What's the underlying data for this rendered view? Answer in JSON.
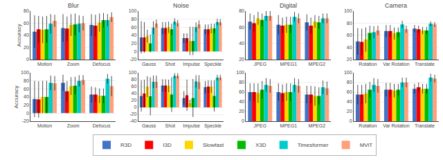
{
  "chart_data": [
    {
      "type": "bar",
      "title": "Blur",
      "ylabel": "Accuracy",
      "categories": [
        "Motion",
        "Zoom",
        "Defocus"
      ],
      "series": [
        {
          "name": "R3D",
          "color": "#4472C4",
          "values": [
            46,
            52,
            57
          ],
          "errors": [
            27,
            23,
            18
          ]
        },
        {
          "name": "I3D",
          "color": "#FF0000",
          "values": [
            50,
            51,
            56
          ],
          "errors": [
            22,
            20,
            18
          ]
        },
        {
          "name": "Slowfast",
          "color": "#FFD700",
          "values": [
            49,
            57,
            61
          ],
          "errors": [
            22,
            18,
            15
          ]
        },
        {
          "name": "X3D",
          "color": "#00BB00",
          "values": [
            50,
            58,
            65
          ],
          "errors": [
            22,
            18,
            12
          ]
        },
        {
          "name": "Timesformer",
          "color": "#00CCCC",
          "values": [
            59,
            59,
            65
          ],
          "errors": [
            16,
            14,
            10
          ]
        },
        {
          "name": "MViT",
          "color": "#FFA07A",
          "values": [
            64,
            60,
            70
          ],
          "errors": [
            10,
            12,
            8
          ]
        }
      ],
      "ylim": [
        0,
        80
      ],
      "yticks": [
        0,
        20,
        40,
        60,
        80
      ],
      "grid": true,
      "legend": "bottom"
    },
    {
      "type": "bar",
      "title": "Noise",
      "categories": [
        "Gauss",
        "Shot",
        "Impulse",
        "Speckle"
      ],
      "series": [
        {
          "name": "R3D",
          "color": "#4472C4",
          "values": [
            35,
            58,
            33,
            55
          ],
          "errors": [
            40,
            15,
            12,
            12
          ]
        },
        {
          "name": "I3D",
          "color": "#FF0000",
          "values": [
            35,
            58,
            33,
            55
          ],
          "errors": [
            38,
            15,
            12,
            12
          ]
        },
        {
          "name": "Slowfast",
          "color": "#FFD700",
          "values": [
            38,
            60,
            26,
            57
          ],
          "errors": [
            16,
            14,
            35,
            12
          ]
        },
        {
          "name": "X3D",
          "color": "#00BB00",
          "values": [
            20,
            55,
            26,
            57
          ],
          "errors": [
            22,
            14,
            35,
            12
          ]
        },
        {
          "name": "Timesformer",
          "color": "#00CCCC",
          "values": [
            59,
            74,
            60,
            73
          ],
          "errors": [
            16,
            8,
            12,
            8
          ]
        },
        {
          "name": "MViT",
          "color": "#FFA07A",
          "values": [
            69,
            70,
            67,
            72
          ],
          "errors": [
            10,
            8,
            10,
            8
          ]
        }
      ],
      "ylim": [
        -20,
        100
      ],
      "yticks": [
        -20,
        0,
        20,
        40,
        60,
        80,
        100
      ],
      "grid": true
    },
    {
      "type": "bar",
      "title": "Digital",
      "categories": [
        "JPEG",
        "MPEG1",
        "MPEG2"
      ],
      "series": [
        {
          "name": "R3D",
          "color": "#4472C4",
          "values": [
            67,
            63,
            66
          ],
          "errors": [
            10,
            12,
            10
          ]
        },
        {
          "name": "I3D",
          "color": "#FF0000",
          "values": [
            65,
            62,
            62
          ],
          "errors": [
            10,
            10,
            10
          ]
        },
        {
          "name": "Slowfast",
          "color": "#FFD700",
          "values": [
            71,
            63,
            67
          ],
          "errors": [
            8,
            10,
            8
          ]
        },
        {
          "name": "X3D",
          "color": "#00BB00",
          "values": [
            69,
            63,
            66
          ],
          "errors": [
            8,
            10,
            8
          ]
        },
        {
          "name": "Timesformer",
          "color": "#00CCCC",
          "values": [
            74,
            73,
            71
          ],
          "errors": [
            6,
            6,
            6
          ]
        },
        {
          "name": "MViT",
          "color": "#FFA07A",
          "values": [
            74,
            71,
            71
          ],
          "errors": [
            6,
            6,
            6
          ]
        }
      ],
      "ylim": [
        20,
        80
      ],
      "yticks": [
        20,
        40,
        60,
        80
      ],
      "grid": true
    },
    {
      "type": "bar",
      "title": "Camera",
      "categories": [
        "Rotation",
        "Var Rotation",
        "Translate"
      ],
      "series": [
        {
          "name": "R3D",
          "color": "#4472C4",
          "values": [
            50,
            67,
            71
          ],
          "errors": [
            22,
            10,
            6
          ]
        },
        {
          "name": "I3D",
          "color": "#FF0000",
          "values": [
            49,
            67,
            70
          ],
          "errors": [
            22,
            10,
            6
          ]
        },
        {
          "name": "Slowfast",
          "color": "#FFD700",
          "values": [
            53,
            63,
            68
          ],
          "errors": [
            20,
            10,
            6
          ]
        },
        {
          "name": "X3D",
          "color": "#00BB00",
          "values": [
            64,
            65,
            68
          ],
          "errors": [
            12,
            8,
            6
          ]
        },
        {
          "name": "Timesformer",
          "color": "#00CCCC",
          "values": [
            65,
            78,
            79
          ],
          "errors": [
            10,
            6,
            4
          ]
        },
        {
          "name": "MViT",
          "color": "#FFA07A",
          "values": [
            68,
            70,
            78
          ],
          "errors": [
            8,
            6,
            4
          ]
        }
      ],
      "ylim": [
        20,
        100
      ],
      "yticks": [
        20,
        40,
        60,
        80,
        100
      ],
      "grid": true
    },
    {
      "type": "bar",
      "ylabel": "Accuracy",
      "categories": [
        "Motion",
        "Zoom",
        "Defocus"
      ],
      "series": [
        {
          "name": "R3D",
          "color": "#4472C4",
          "values": [
            35,
            75,
            46
          ],
          "errors": [
            45,
            20,
            20
          ]
        },
        {
          "name": "I3D",
          "color": "#FF0000",
          "values": [
            34,
            54,
            46
          ],
          "errors": [
            45,
            25,
            18
          ]
        },
        {
          "name": "Slowfast",
          "color": "#FFD700",
          "values": [
            40,
            67,
            43
          ],
          "errors": [
            40,
            22,
            18
          ]
        },
        {
          "name": "X3D",
          "color": "#00BB00",
          "values": [
            40,
            68,
            43
          ],
          "errors": [
            40,
            22,
            18
          ]
        },
        {
          "name": "Timesformer",
          "color": "#00CCCC",
          "values": [
            75,
            80,
            85
          ],
          "errors": [
            18,
            14,
            12
          ]
        },
        {
          "name": "MViT",
          "color": "#FFA07A",
          "values": [
            74,
            82,
            67
          ],
          "errors": [
            18,
            12,
            25
          ]
        }
      ],
      "ylim": [
        -20,
        100
      ],
      "yticks": [
        -20,
        0,
        20,
        40,
        60,
        80,
        100
      ],
      "grid": true
    },
    {
      "type": "bar",
      "categories": [
        "Gauss",
        "Shot",
        "Impulse",
        "Speckle"
      ],
      "series": [
        {
          "name": "R3D",
          "color": "#4472C4",
          "values": [
            33,
            63,
            27,
            58
          ],
          "errors": [
            45,
            18,
            20,
            18
          ]
        },
        {
          "name": "I3D",
          "color": "#FF0000",
          "values": [
            40,
            63,
            35,
            60
          ],
          "errors": [
            40,
            18,
            45,
            18
          ]
        },
        {
          "name": "Slowfast",
          "color": "#FFD700",
          "values": [
            60,
            62,
            12,
            60
          ],
          "errors": [
            30,
            18,
            10,
            18
          ]
        },
        {
          "name": "X3D",
          "color": "#00BB00",
          "values": [
            32,
            37,
            27,
            33
          ],
          "errors": [
            55,
            50,
            55,
            45
          ]
        },
        {
          "name": "Timesformer",
          "color": "#00CCCC",
          "values": [
            74,
            91,
            75,
            86
          ],
          "errors": [
            18,
            8,
            18,
            8
          ]
        },
        {
          "name": "MViT",
          "color": "#FFA07A",
          "values": [
            74,
            91,
            73,
            86
          ],
          "errors": [
            18,
            8,
            20,
            8
          ]
        }
      ],
      "ylim": [
        -40,
        100
      ],
      "yticks": [
        -40,
        -20,
        0,
        20,
        40,
        60,
        80,
        100
      ],
      "grid": true
    },
    {
      "type": "bar",
      "categories": [
        "JPEG",
        "MPEG1",
        "MPEG2"
      ],
      "series": [
        {
          "name": "R3D",
          "color": "#4472C4",
          "values": [
            60,
            60,
            55
          ],
          "errors": [
            18,
            18,
            18
          ]
        },
        {
          "name": "I3D",
          "color": "#FF0000",
          "values": [
            60,
            58,
            55
          ],
          "errors": [
            18,
            18,
            18
          ]
        },
        {
          "name": "Slowfast",
          "color": "#FFD700",
          "values": [
            58,
            60,
            52
          ],
          "errors": [
            20,
            18,
            20
          ]
        },
        {
          "name": "X3D",
          "color": "#00BB00",
          "values": [
            65,
            60,
            52
          ],
          "errors": [
            18,
            18,
            18
          ]
        },
        {
          "name": "Timesformer",
          "color": "#00CCCC",
          "values": [
            75,
            75,
            70
          ],
          "errors": [
            14,
            14,
            14
          ]
        },
        {
          "name": "MViT",
          "color": "#FFA07A",
          "values": [
            73,
            73,
            68
          ],
          "errors": [
            14,
            14,
            14
          ]
        }
      ],
      "ylim": [
        0,
        100
      ],
      "yticks": [
        0,
        20,
        40,
        60,
        80,
        100
      ],
      "grid": true
    },
    {
      "type": "bar",
      "categories": [
        "Rotation",
        "Var Rotation",
        "Translate"
      ],
      "series": [
        {
          "name": "R3D",
          "color": "#4472C4",
          "values": [
            55,
            65,
            67
          ],
          "errors": [
            20,
            14,
            10
          ]
        },
        {
          "name": "I3D",
          "color": "#FF0000",
          "values": [
            55,
            65,
            70
          ],
          "errors": [
            20,
            14,
            10
          ]
        },
        {
          "name": "Slowfast",
          "color": "#FFD700",
          "values": [
            57,
            63,
            67
          ],
          "errors": [
            20,
            14,
            10
          ]
        },
        {
          "name": "X3D",
          "color": "#00BB00",
          "values": [
            65,
            65,
            67
          ],
          "errors": [
            16,
            12,
            10
          ]
        },
        {
          "name": "Timesformer",
          "color": "#00CCCC",
          "values": [
            75,
            80,
            90
          ],
          "errors": [
            14,
            10,
            8
          ]
        },
        {
          "name": "MViT",
          "color": "#FFA07A",
          "values": [
            73,
            80,
            88
          ],
          "errors": [
            14,
            10,
            8
          ]
        }
      ],
      "ylim": [
        0,
        100
      ],
      "yticks": [
        0,
        20,
        40,
        60,
        80,
        100
      ],
      "grid": true
    }
  ]
}
